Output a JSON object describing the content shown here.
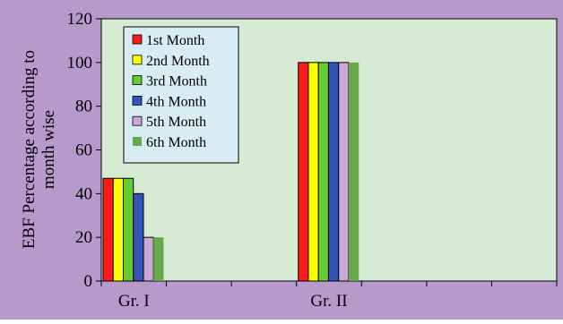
{
  "chart_data": {
    "type": "bar",
    "title": "",
    "ylabel_lines": [
      "EBF Percentage according to",
      "month wise"
    ],
    "xlabel": "",
    "categories": [
      "Gr. I",
      "Gr. II"
    ],
    "ylim": [
      0,
      120
    ],
    "yticks": [
      0,
      20,
      40,
      60,
      80,
      100,
      120
    ],
    "grid": false,
    "legend_position": "top-left inside",
    "series": [
      {
        "name": "1st Month",
        "values": [
          47,
          100
        ],
        "color": "#ff1a1a"
      },
      {
        "name": "2nd Month",
        "values": [
          47,
          100
        ],
        "color": "#ffff00"
      },
      {
        "name": "3rd Month",
        "values": [
          47,
          100
        ],
        "color": "#66cc33"
      },
      {
        "name": "4th Month",
        "values": [
          40,
          100
        ],
        "color": "#3355bb"
      },
      {
        "name": "5th Month",
        "values": [
          20,
          100
        ],
        "color": "#c9a8d8"
      },
      {
        "name": "6th Month",
        "values": [
          20,
          100
        ],
        "color": "#66a84a"
      }
    ],
    "colors": {
      "outer_background": "#b899cc",
      "plot_background": "#d7ead3",
      "legend_background": "#d7ecf3"
    }
  }
}
